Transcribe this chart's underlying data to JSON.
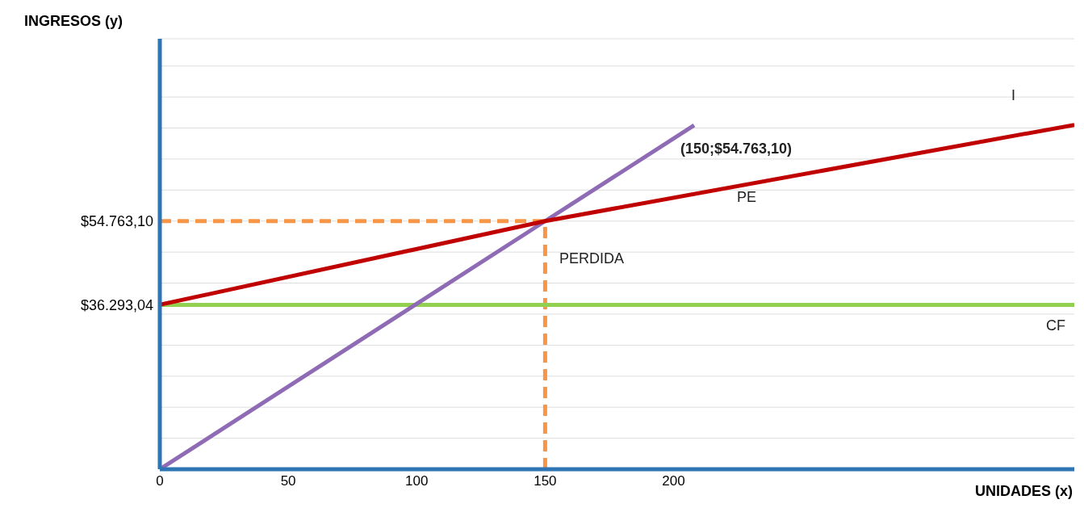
{
  "chart_data": {
    "type": "line",
    "xlabel": "UNIDADES (x)",
    "ylabel": "INGRESOS (y)",
    "xlim": [
      0,
      356
    ],
    "xticks": [
      0,
      50,
      100,
      150,
      200
    ],
    "ylim": [
      0,
      95000
    ],
    "yticks": [
      {
        "value": 6845,
        "label": null
      },
      {
        "value": 13691,
        "label": null
      },
      {
        "value": 20536,
        "label": null
      },
      {
        "value": 27382,
        "label": null
      },
      {
        "value": 34227,
        "label": null
      },
      {
        "value": 36293.04,
        "label": "$36.293,04"
      },
      {
        "value": 41073,
        "label": null
      },
      {
        "value": 47918,
        "label": null
      },
      {
        "value": 54763.1,
        "label": "$54.763,10"
      },
      {
        "value": 61609,
        "label": null
      },
      {
        "value": 68454,
        "label": null
      },
      {
        "value": 75300,
        "label": null
      },
      {
        "value": 82145,
        "label": null
      },
      {
        "value": 88991,
        "label": null
      }
    ],
    "grid": "y",
    "series": [
      {
        "color": "#f79646",
        "line_style": "dashed",
        "x": [
          0,
          150
        ],
        "values": [
          54763.1,
          54763.1
        ]
      },
      {
        "color": "#f79646",
        "line_style": "dashed",
        "x": [
          150,
          150
        ],
        "values": [
          0,
          54763.1
        ]
      },
      {
        "color": "#92d050",
        "line_style": "solid",
        "x": [
          0,
          356
        ],
        "values": [
          36293.04,
          36293.04
        ]
      },
      {
        "color": "#8e6bb4",
        "line_style": "solid",
        "x": [
          0,
          150,
          208
        ],
        "values": [
          0,
          54763.1,
          75900
        ]
      },
      {
        "color": "#c00000",
        "line_style": "solid",
        "x": [
          0,
          150,
          356
        ],
        "values": [
          36293.04,
          54763.1,
          76000
        ]
      }
    ],
    "annotations": [
      "I",
      "(150;$54.763,10)",
      "PE",
      "PERDIDA",
      "CF"
    ]
  }
}
